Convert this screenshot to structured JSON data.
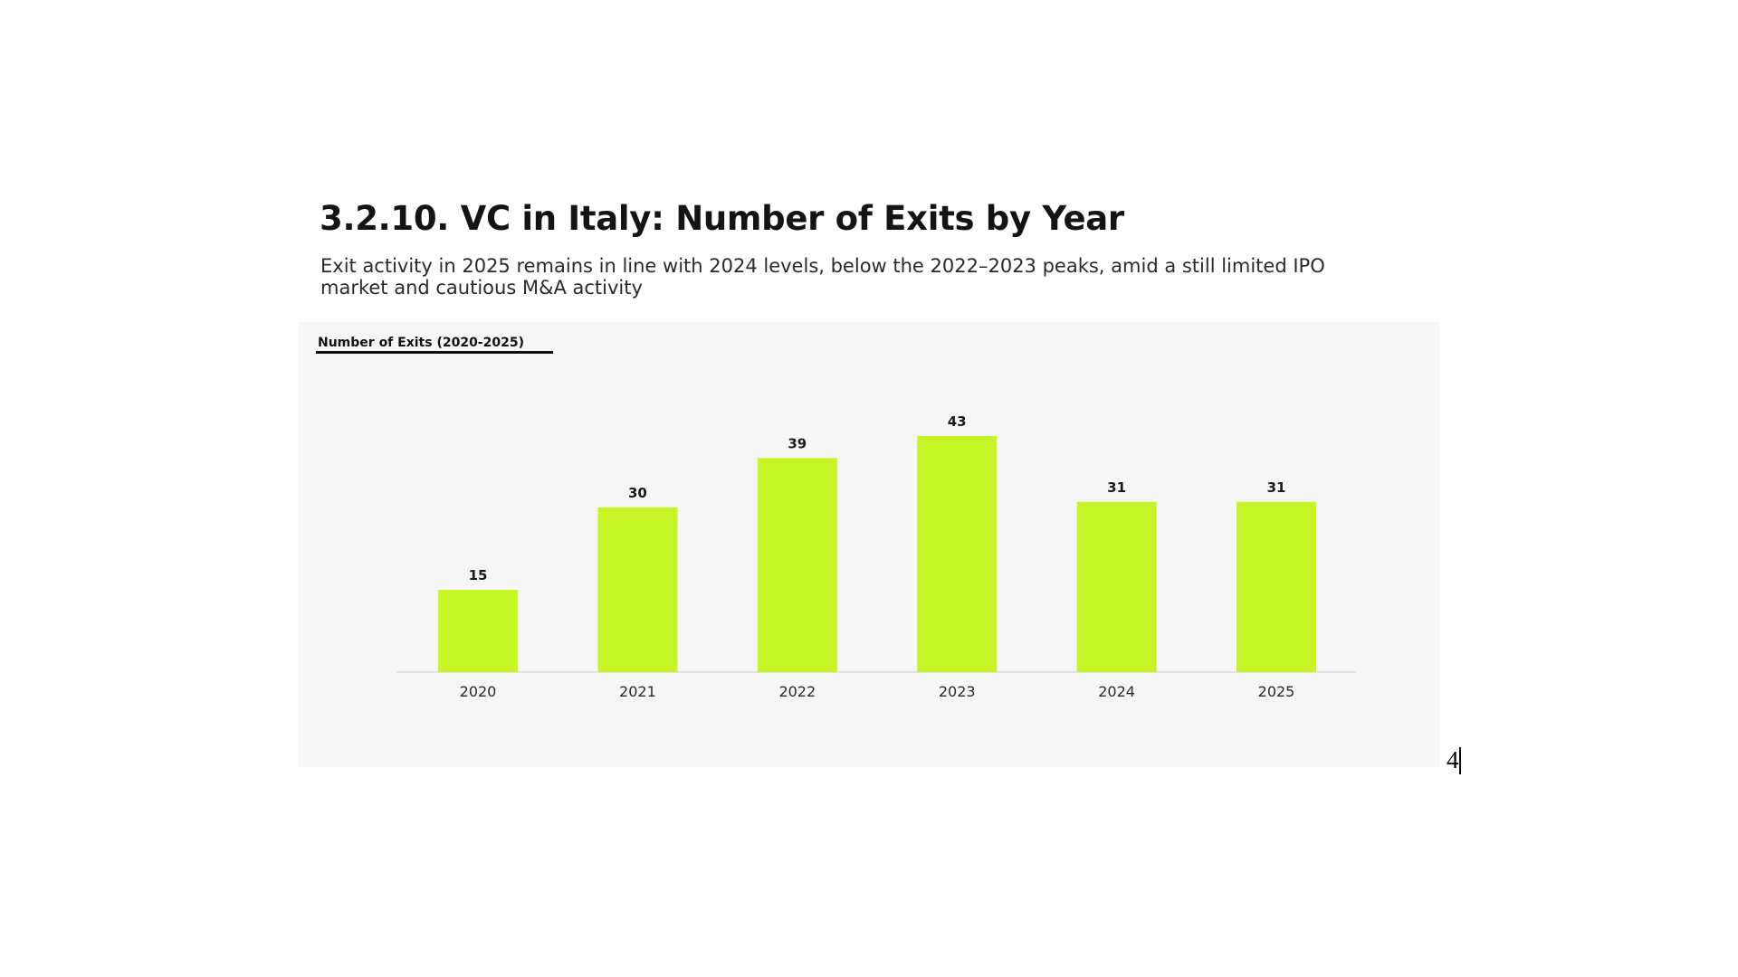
{
  "slide": {
    "title": "3.2.10. VC in Italy: Number of Exits by Year",
    "subtitle": "Exit activity in 2025 remains in line with 2024 levels, below the 2022–2023 peaks, amid a still limited IPO market and cautious M&A activity",
    "page_number": "4"
  },
  "colors": {
    "bar": "#c5f526",
    "baseline": "#dcdcdc",
    "panel_background": "#f6f6f6",
    "text": "#1a1a1a"
  },
  "chart_data": {
    "type": "bar",
    "title": "Number of Exits (2020-2025)",
    "xlabel": "",
    "ylabel": "",
    "categories": [
      "2020",
      "2021",
      "2022",
      "2023",
      "2024",
      "2025"
    ],
    "values": [
      15,
      30,
      39,
      43,
      31,
      31
    ],
    "ylim": [
      0,
      43
    ],
    "grid": false,
    "data_labels": true
  }
}
